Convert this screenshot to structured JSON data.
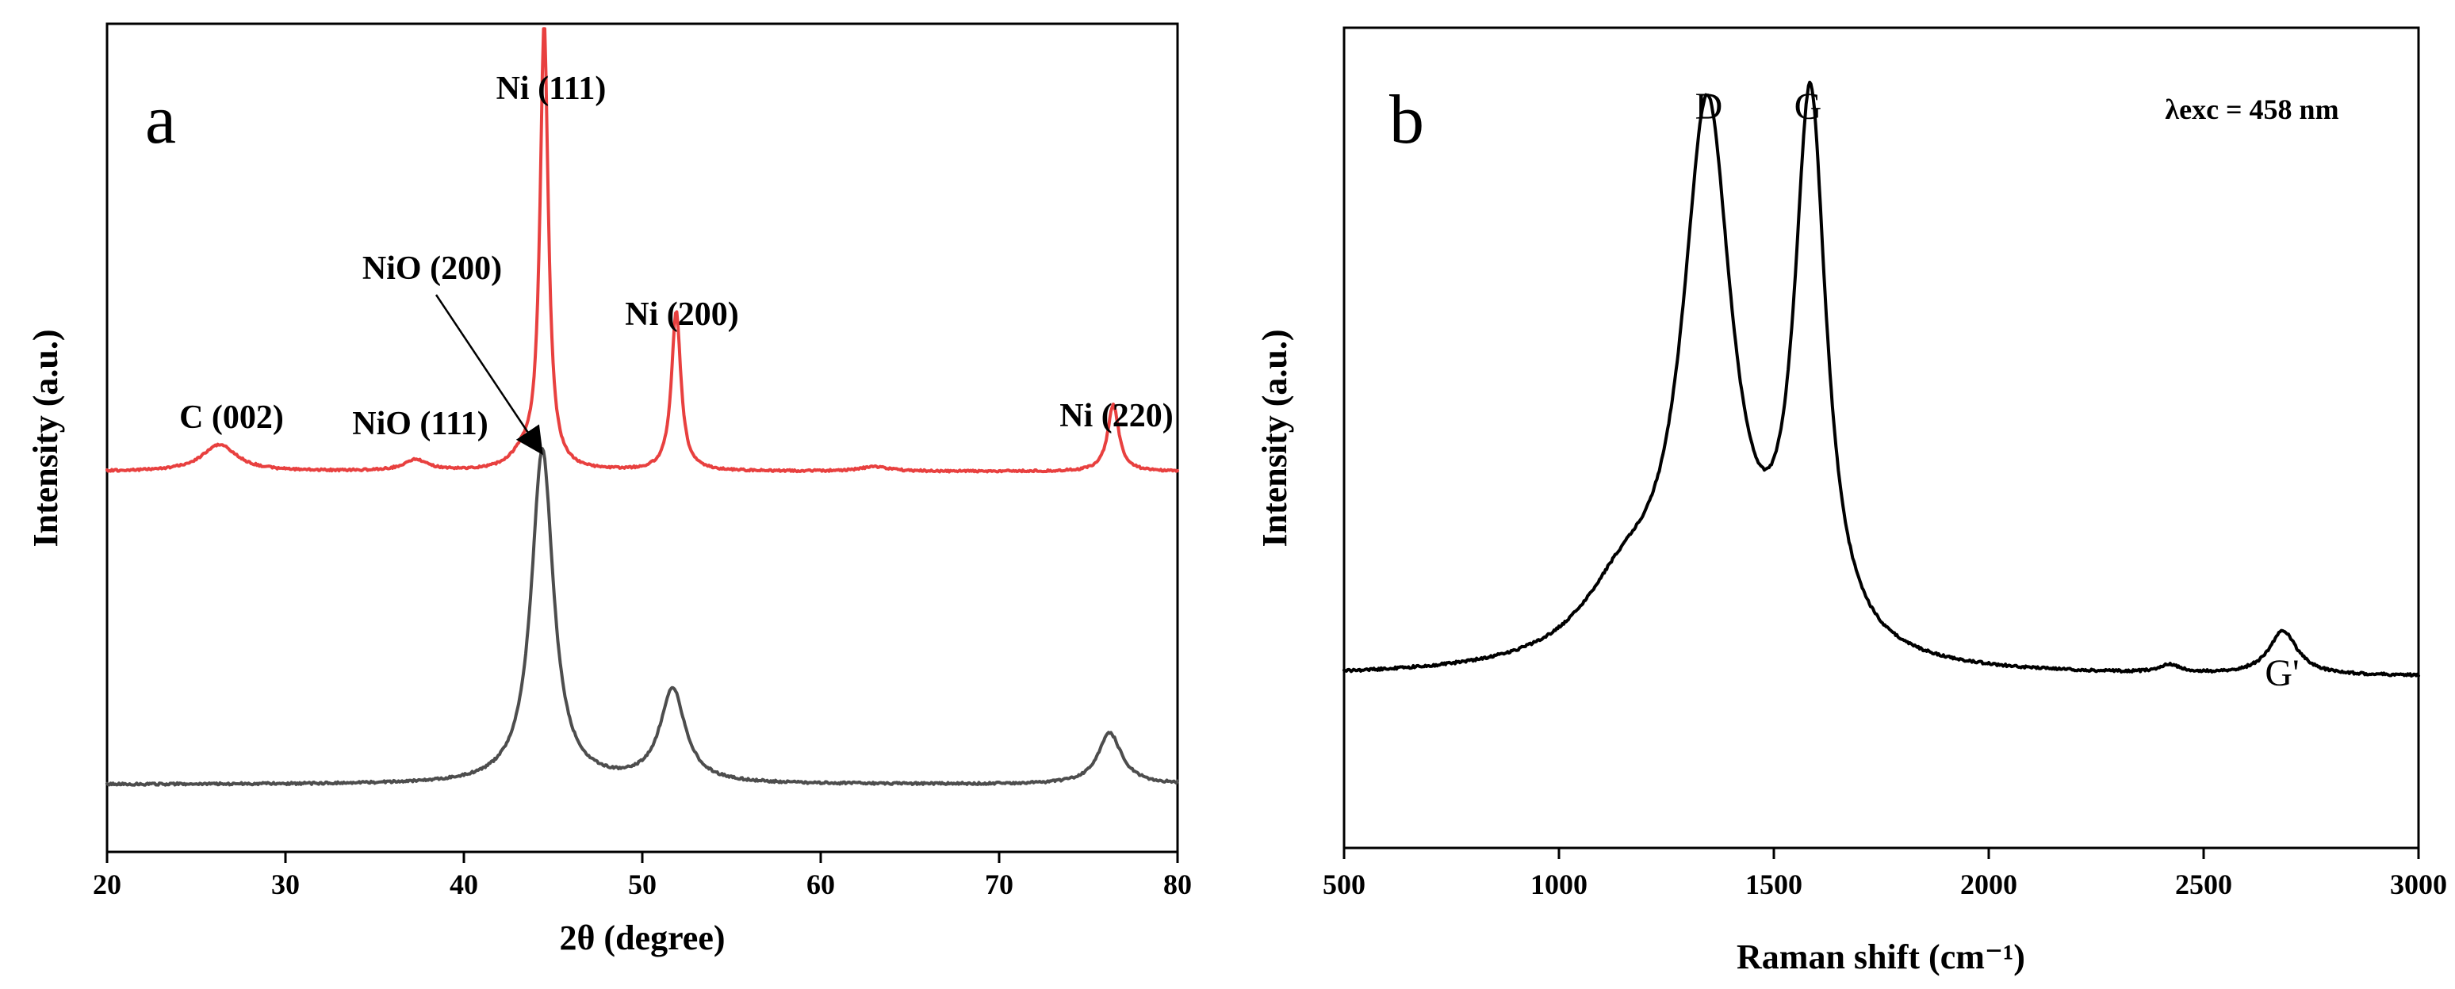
{
  "chart_data": [
    {
      "type": "line",
      "panel_label": "a",
      "xlabel": "2θ (degree)",
      "ylabel": "Intensity (a.u.)",
      "xlim": [
        20,
        80
      ],
      "xticks": [
        20,
        30,
        40,
        50,
        60,
        70,
        80
      ],
      "yticks_shown": false,
      "series": [
        {
          "name": "upper (red) pattern",
          "color": "#e8403f",
          "baseline": 1.0,
          "peaks": [
            {
              "x": 26.3,
              "height": 0.06,
              "width": 1.2
            },
            {
              "x": 37.3,
              "height": 0.025,
              "width": 0.8
            },
            {
              "x": 43.3,
              "height": 0.03,
              "width": 0.8
            },
            {
              "x": 44.5,
              "height": 1.0,
              "width": 0.28
            },
            {
              "x": 51.9,
              "height": 0.36,
              "width": 0.32
            },
            {
              "x": 63.0,
              "height": 0.01,
              "width": 1.0
            },
            {
              "x": 76.4,
              "height": 0.15,
              "width": 0.38
            }
          ]
        },
        {
          "name": "lower (gray) pattern",
          "color": "#4d4d4d",
          "baseline": 0.0,
          "peaks": [
            {
              "x": 44.4,
              "height": 0.78,
              "width": 0.75
            },
            {
              "x": 51.7,
              "height": 0.22,
              "width": 0.85
            },
            {
              "x": 76.2,
              "height": 0.12,
              "width": 0.8
            }
          ]
        }
      ],
      "annotations": [
        {
          "text": "Ni (111)",
          "x": 44.5
        },
        {
          "text": "NiO (200)",
          "x": 43.3
        },
        {
          "text": "Ni (200)",
          "x": 51.9
        },
        {
          "text": "C (002)",
          "x": 26.3
        },
        {
          "text": "NiO (111)",
          "x": 37.3
        },
        {
          "text": "Ni (220)",
          "x": 76.4
        }
      ]
    },
    {
      "type": "line",
      "panel_label": "b",
      "xlabel": "Raman shift (cm⁻¹)",
      "ylabel": "Intensity (a.u.)",
      "xlim": [
        500,
        3000
      ],
      "xticks": [
        500,
        1000,
        1500,
        2000,
        2500,
        3000
      ],
      "yticks_shown": false,
      "series": [
        {
          "name": "Raman spectrum",
          "color": "#000000",
          "baseline": 0.0,
          "peaks": [
            {
              "x": 1345,
              "height": 1.0,
              "width": 70
            },
            {
              "x": 1585,
              "height": 1.0,
              "width": 45
            },
            {
              "x": 1150,
              "height": 0.12,
              "width": 120
            },
            {
              "x": 2420,
              "height": 0.015,
              "width": 30
            },
            {
              "x": 2685,
              "height": 0.08,
              "width": 40
            }
          ]
        }
      ],
      "annotations": [
        {
          "text": "D",
          "x": 1345
        },
        {
          "text": "G",
          "x": 1585
        },
        {
          "text": "G'",
          "x": 2685
        }
      ],
      "note": "λexc = 458 nm"
    }
  ]
}
